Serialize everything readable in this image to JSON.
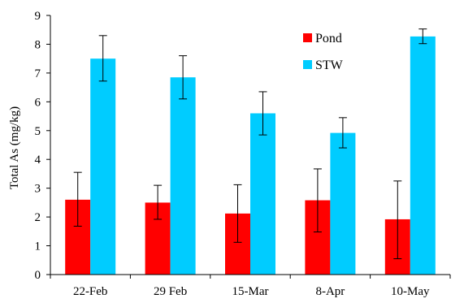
{
  "chart_data": {
    "type": "bar",
    "title": "",
    "xlabel": "",
    "ylabel": "Total As (mg/kg)",
    "categories": [
      "22-Feb",
      "29 Feb",
      "15-Mar",
      "8-Apr",
      "10-May"
    ],
    "ylim": [
      0,
      9
    ],
    "yticks": [
      0,
      1,
      2,
      3,
      4,
      5,
      6,
      7,
      8,
      9
    ],
    "grid": false,
    "legend_position": "top-right",
    "series": [
      {
        "name": "Pond",
        "color": "#ff0000",
        "values": [
          2.6,
          2.5,
          2.12,
          2.58,
          1.92
        ],
        "error_low": [
          1.68,
          1.92,
          1.12,
          1.48,
          0.55
        ],
        "error_high": [
          3.55,
          3.1,
          3.12,
          3.67,
          3.25
        ]
      },
      {
        "name": "STW",
        "color": "#00ccff",
        "values": [
          7.5,
          6.85,
          5.6,
          4.92,
          8.27
        ],
        "error_low": [
          6.72,
          6.1,
          4.85,
          4.4,
          8.02
        ],
        "error_high": [
          8.3,
          7.6,
          6.35,
          5.45,
          8.53
        ]
      }
    ]
  }
}
